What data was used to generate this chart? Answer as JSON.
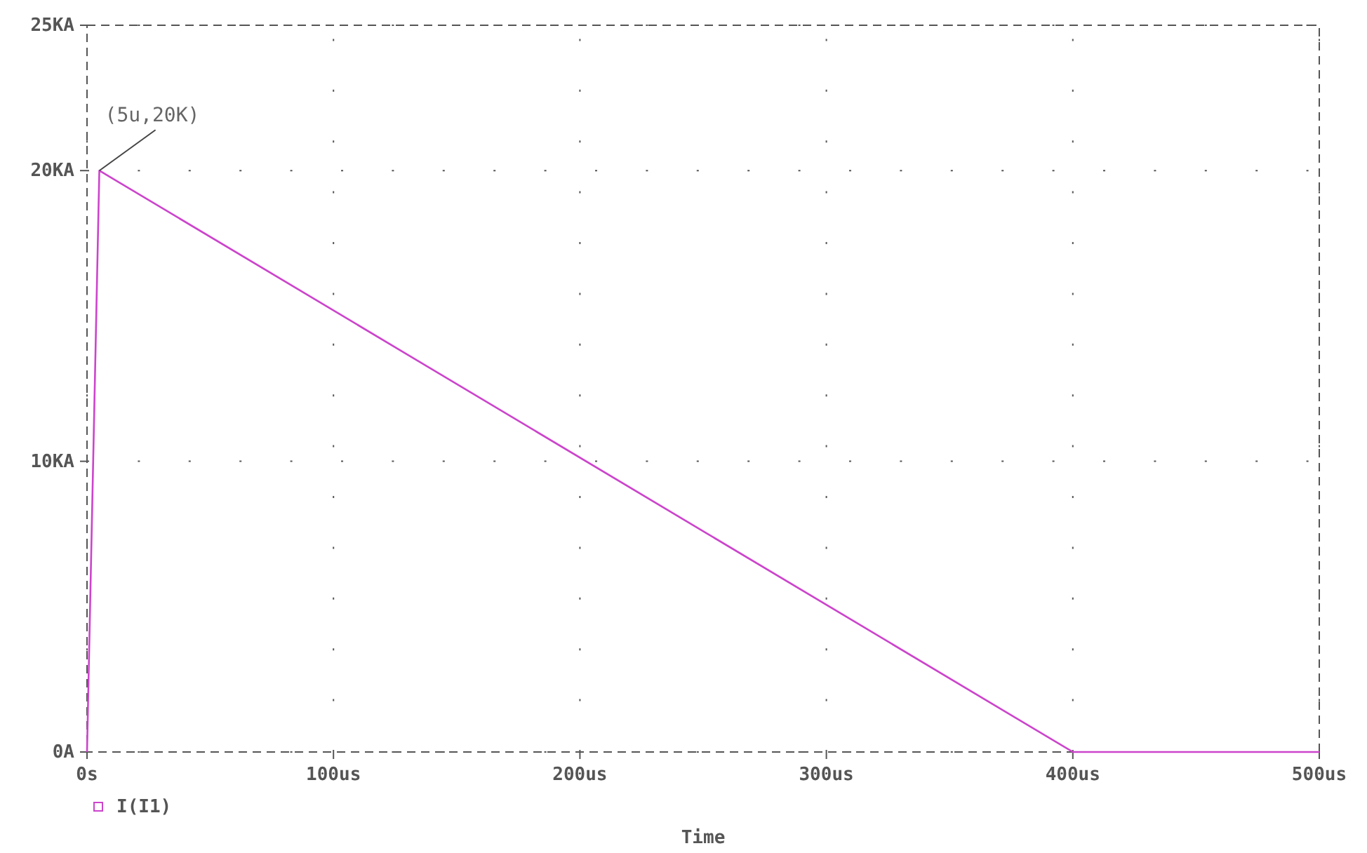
{
  "chart_data": {
    "type": "line",
    "xlabel": "Time",
    "x": [
      0,
      5,
      400,
      500
    ],
    "series": [
      {
        "name": "I(I1)",
        "color": "#cc44cc",
        "values": [
          0,
          20,
          0,
          0
        ]
      }
    ],
    "xlim": [
      0,
      500
    ],
    "xticks": [
      {
        "value": 0,
        "label": "0s"
      },
      {
        "value": 100,
        "label": "100us"
      },
      {
        "value": 200,
        "label": "200us"
      },
      {
        "value": 300,
        "label": "300us"
      },
      {
        "value": 400,
        "label": "400us"
      },
      {
        "value": 500,
        "label": "500us"
      }
    ],
    "ylim": [
      0,
      25
    ],
    "yticks": [
      {
        "value": 0,
        "label": "0A"
      },
      {
        "value": 10,
        "label": "10KA"
      },
      {
        "value": 20,
        "label": "20KA"
      },
      {
        "value": 25,
        "label": "25KA"
      }
    ],
    "grid": true,
    "legend": "bottom left",
    "marker": "none",
    "line_style": "solid",
    "annotations": [
      {
        "text": "(5u,20K)",
        "x": 5,
        "y": 20
      }
    ]
  }
}
